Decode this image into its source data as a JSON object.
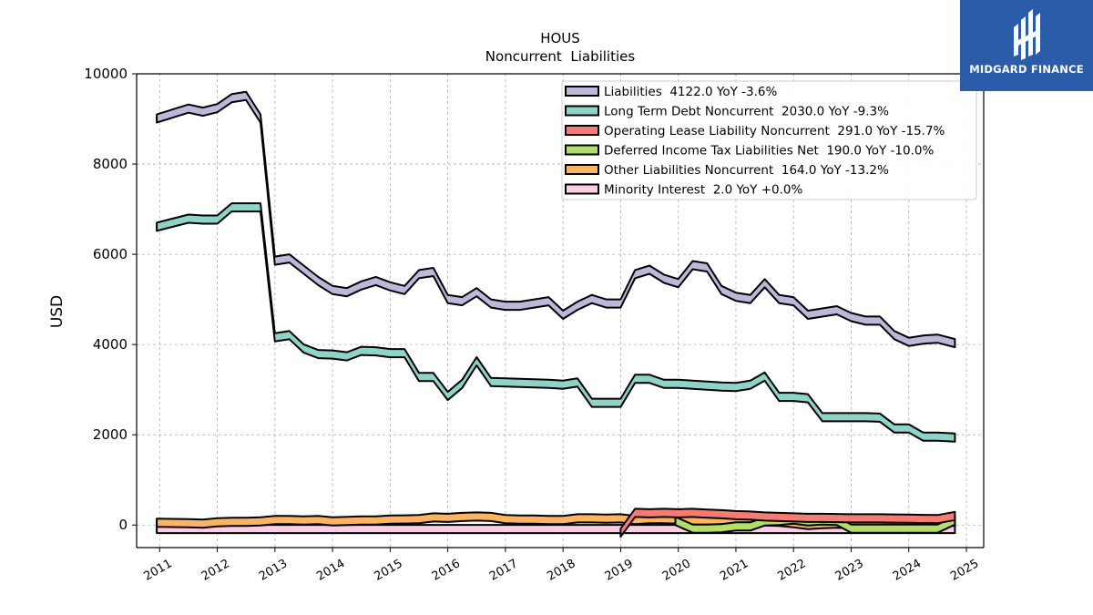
{
  "brand": {
    "name": "MIDGARD FINANCE",
    "color": "#2a5caa",
    "icon": "midgard-logo-icon"
  },
  "chart_data": {
    "type": "area",
    "title": "HOUS",
    "subtitle": "Noncurrent  Liabilities",
    "ylabel": "USD",
    "xlabel": "",
    "xlim": [
      2010.6,
      2025.3
    ],
    "ylim": [
      -500,
      10000
    ],
    "xticks": [
      2011,
      2012,
      2013,
      2014,
      2015,
      2016,
      2017,
      2018,
      2019,
      2020,
      2021,
      2022,
      2023,
      2024,
      2025
    ],
    "xtick_labels": [
      "2011",
      "2012",
      "2013",
      "2014",
      "2015",
      "2016",
      "2017",
      "2018",
      "2019",
      "2020",
      "2021",
      "2022",
      "2023",
      "2024",
      "2025"
    ],
    "yticks": [
      0,
      2000,
      4000,
      6000,
      8000,
      10000
    ],
    "ytick_labels": [
      "0",
      "2000",
      "4000",
      "6000",
      "8000",
      "10000"
    ],
    "grid": true,
    "legend_position": "top-right",
    "series": [
      {
        "name": "Liabilities  4122.0 YoY -3.6%",
        "color": "#bcb8d9",
        "x": [
          2010.95,
          2011.5,
          2011.75,
          2012.0,
          2012.25,
          2012.5,
          2012.75,
          2013.0,
          2013.25,
          2013.5,
          2013.75,
          2014.0,
          2014.25,
          2014.5,
          2014.75,
          2015.0,
          2015.25,
          2015.5,
          2015.75,
          2016.0,
          2016.25,
          2016.5,
          2016.75,
          2017.0,
          2017.25,
          2017.5,
          2017.75,
          2018.0,
          2018.25,
          2018.5,
          2018.75,
          2019.0,
          2019.25,
          2019.5,
          2019.75,
          2020.0,
          2020.25,
          2020.5,
          2020.75,
          2021.0,
          2021.25,
          2021.5,
          2021.75,
          2022.0,
          2022.25,
          2022.5,
          2022.75,
          2023.0,
          2023.25,
          2023.5,
          2023.75,
          2024.0,
          2024.25,
          2024.5,
          2024.8
        ],
        "values": [
          9100,
          9320,
          9250,
          9330,
          9550,
          9600,
          9100,
          5950,
          6000,
          5750,
          5500,
          5300,
          5250,
          5400,
          5500,
          5380,
          5300,
          5650,
          5700,
          5100,
          5050,
          5250,
          5000,
          4950,
          4950,
          5000,
          5050,
          4750,
          4950,
          5100,
          5000,
          5000,
          5650,
          5750,
          5550,
          5450,
          5850,
          5800,
          5300,
          5150,
          5100,
          5450,
          5100,
          5050,
          4750,
          4800,
          4850,
          4700,
          4620,
          4620,
          4300,
          4150,
          4200,
          4220,
          4122
        ]
      },
      {
        "name": "Long Term Debt Noncurrent  2030.0 YoY -9.3%",
        "color": "#8dd3c7",
        "x": [
          2010.95,
          2011.5,
          2011.75,
          2012.0,
          2012.25,
          2012.5,
          2012.75,
          2013.0,
          2013.25,
          2013.5,
          2013.75,
          2014.0,
          2014.25,
          2014.5,
          2014.75,
          2015.0,
          2015.25,
          2015.5,
          2015.75,
          2016.0,
          2016.25,
          2016.5,
          2016.75,
          2017.0,
          2017.25,
          2017.5,
          2017.75,
          2018.0,
          2018.25,
          2018.5,
          2018.75,
          2019.0,
          2019.25,
          2019.5,
          2019.75,
          2020.0,
          2020.25,
          2020.5,
          2020.75,
          2021.0,
          2021.25,
          2021.5,
          2021.75,
          2022.0,
          2022.25,
          2022.5,
          2022.75,
          2023.0,
          2023.25,
          2023.5,
          2023.75,
          2024.0,
          2024.25,
          2024.5,
          2024.8
        ],
        "values": [
          6700,
          6880,
          6860,
          6860,
          7130,
          7130,
          7130,
          4250,
          4300,
          4000,
          3880,
          3870,
          3830,
          3950,
          3940,
          3900,
          3900,
          3370,
          3370,
          2950,
          3220,
          3720,
          3260,
          3250,
          3240,
          3230,
          3220,
          3200,
          3250,
          2800,
          2800,
          2800,
          3330,
          3330,
          3220,
          3220,
          3200,
          3180,
          3160,
          3150,
          3200,
          3380,
          2930,
          2930,
          2900,
          2480,
          2480,
          2480,
          2480,
          2470,
          2230,
          2230,
          2050,
          2050,
          2030
        ]
      },
      {
        "name": "Operating Lease Liability Noncurrent  291.0 YoY -15.7%",
        "color": "#f47c72",
        "x": [
          2019.0,
          2019.25,
          2019.5,
          2019.75,
          2020.0,
          2020.25,
          2020.5,
          2020.75,
          2021.0,
          2021.25,
          2021.5,
          2021.75,
          2022.0,
          2022.25,
          2022.5,
          2022.75,
          2023.0,
          2023.25,
          2023.5,
          2023.75,
          2024.0,
          2024.25,
          2024.5,
          2024.8
        ],
        "values": [
          -80,
          360,
          350,
          360,
          350,
          360,
          345,
          330,
          310,
          300,
          280,
          270,
          260,
          250,
          250,
          245,
          240,
          240,
          240,
          235,
          230,
          225,
          220,
          291
        ]
      },
      {
        "name": "Deferred Income Tax Liabilities Net  190.0 YoY -10.0%",
        "color": "#b3de69",
        "x": [
          2019.95,
          2020.25,
          2020.5,
          2020.75,
          2021.0,
          2021.25,
          2021.5,
          2021.75,
          2022.0,
          2022.25,
          2022.5,
          2022.75,
          2023.0,
          2023.25,
          2023.5,
          2023.75,
          2024.0,
          2024.25,
          2024.5,
          2024.8
        ],
        "values": [
          180,
          10,
          10,
          20,
          60,
          60,
          170,
          180,
          210,
          170,
          190,
          180,
          10,
          10,
          10,
          10,
          10,
          10,
          10,
          190
        ]
      },
      {
        "name": "Other Liabilities Noncurrent  164.0 YoY -13.2%",
        "color": "#fdb462",
        "x": [
          2010.95,
          2011.5,
          2011.75,
          2012.0,
          2012.25,
          2012.5,
          2012.75,
          2013.0,
          2013.25,
          2013.5,
          2013.75,
          2014.0,
          2014.25,
          2014.5,
          2014.75,
          2015.0,
          2015.25,
          2015.5,
          2015.75,
          2016.0,
          2016.25,
          2016.5,
          2016.75,
          2017.0,
          2017.25,
          2017.5,
          2017.75,
          2018.0,
          2018.25,
          2018.5,
          2018.75,
          2019.0,
          2019.25,
          2019.5,
          2019.75,
          2020.0,
          2020.25,
          2020.5,
          2020.75,
          2021.0,
          2021.25,
          2021.5,
          2021.75,
          2022.0,
          2022.25,
          2022.5,
          2022.75,
          2023.0,
          2023.25,
          2023.5,
          2023.75,
          2024.0,
          2024.25,
          2024.5,
          2024.8
        ],
        "values": [
          140,
          130,
          120,
          150,
          160,
          160,
          170,
          200,
          200,
          190,
          200,
          170,
          180,
          190,
          190,
          210,
          215,
          220,
          260,
          250,
          270,
          280,
          270,
          220,
          210,
          210,
          200,
          200,
          240,
          240,
          230,
          240,
          200,
          220,
          220,
          210,
          190,
          190,
          200,
          190,
          200,
          170,
          160,
          130,
          90,
          110,
          120,
          110,
          120,
          120,
          130,
          150,
          150,
          160,
          164
        ]
      },
      {
        "name": "Minority Interest  2.0 YoY +0.0%",
        "color": "#fccde5",
        "x": [
          2010.95,
          2024.8
        ],
        "values": [
          2,
          2
        ]
      }
    ]
  }
}
